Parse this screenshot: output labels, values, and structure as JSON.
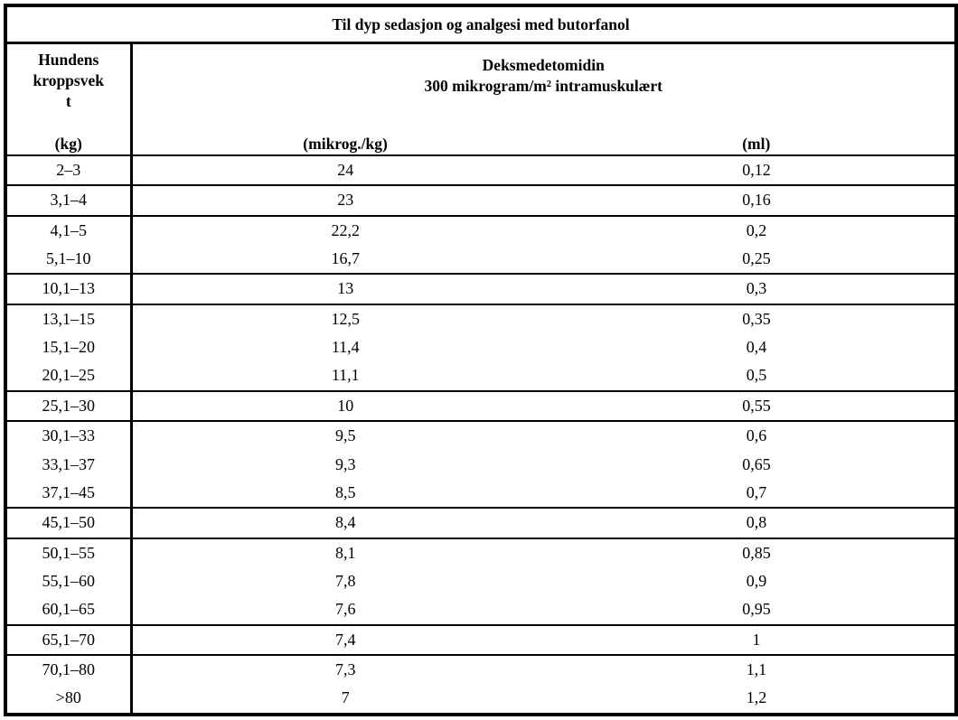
{
  "table": {
    "title": "Til dyp sedasjon og analgesi med butorfanol",
    "header": {
      "weight_col": {
        "lines": [
          "Hundens",
          "kroppsvek",
          "t"
        ],
        "unit": "(kg)"
      },
      "drug": {
        "name": "Deksmedetomidin",
        "dose": "300 mikrogram/m² intramuskulært"
      },
      "dose_unit": "(mikrog./kg)",
      "volume_unit": "(ml)"
    },
    "groups": [
      [
        [
          "2–3",
          "24",
          "0,12"
        ]
      ],
      [
        [
          "3,1–4",
          "23",
          "0,16"
        ]
      ],
      [
        [
          "4,1–5",
          "22,2",
          "0,2"
        ],
        [
          "5,1–10",
          "16,7",
          "0,25"
        ]
      ],
      [
        [
          "10,1–13",
          "13",
          "0,3"
        ]
      ],
      [
        [
          "13,1–15",
          "12,5",
          "0,35"
        ],
        [
          "15,1–20",
          "11,4",
          "0,4"
        ],
        [
          "20,1–25",
          "11,1",
          "0,5"
        ]
      ],
      [
        [
          "25,1–30",
          "10",
          "0,55"
        ]
      ],
      [
        [
          "30,1–33",
          "9,5",
          "0,6"
        ],
        [
          "33,1–37",
          "9,3",
          "0,65"
        ],
        [
          "37,1–45",
          "8,5",
          "0,7"
        ]
      ],
      [
        [
          "45,1–50",
          "8,4",
          "0,8"
        ]
      ],
      [
        [
          "50,1–55",
          "8,1",
          "0,85"
        ],
        [
          "55,1–60",
          "7,8",
          "0,9"
        ],
        [
          "60,1–65",
          "7,6",
          "0,95"
        ]
      ],
      [
        [
          "65,1–70",
          "7,4",
          "1"
        ]
      ],
      [
        [
          "70,1–80",
          "7,3",
          "1,1"
        ],
        [
          ">80",
          "7",
          "1,2"
        ]
      ]
    ]
  }
}
